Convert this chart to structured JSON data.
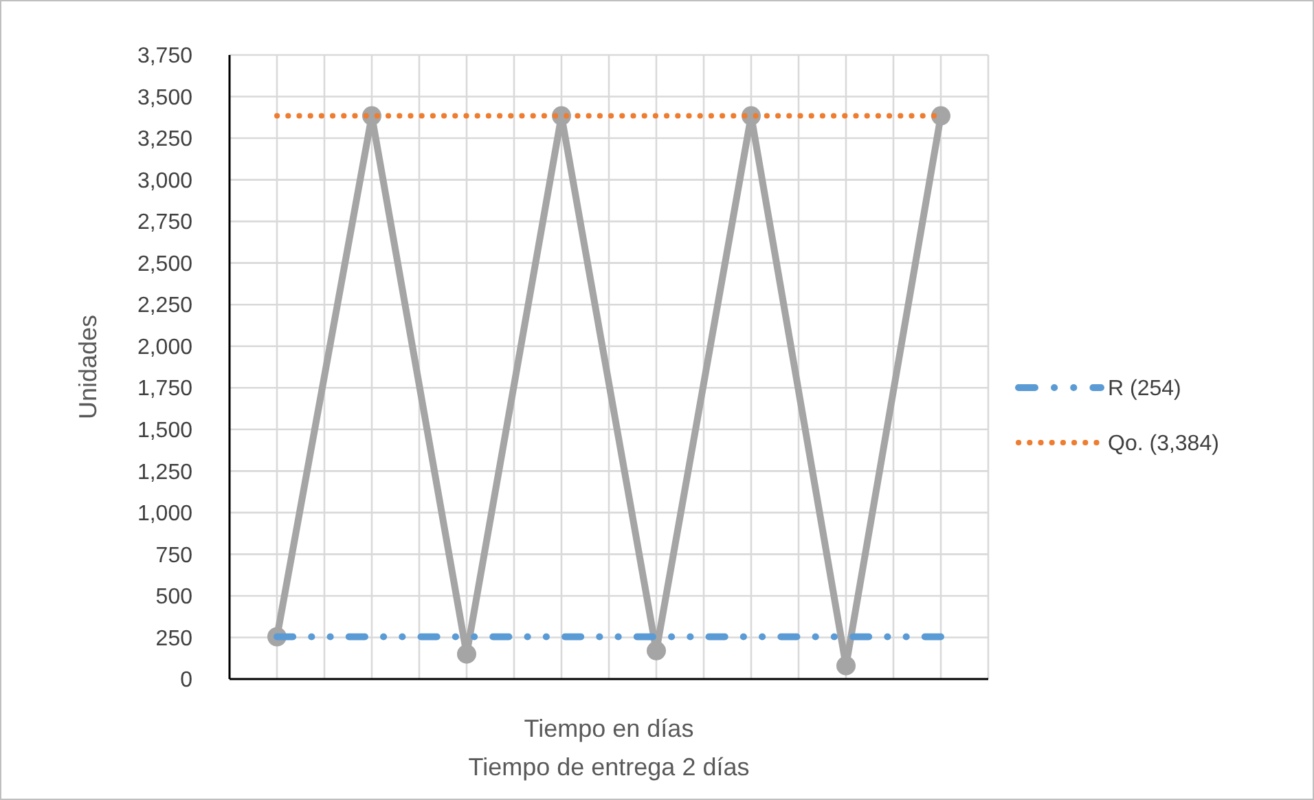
{
  "chart_data": {
    "type": "line",
    "ylabel": "Unidades",
    "xlabel": "Tiempo en días",
    "annotations": [
      "Tiempo de entrega 2 días"
    ],
    "categories": [
      null,
      null,
      null,
      null,
      null,
      null,
      null,
      null
    ],
    "ylim": [
      0,
      3750
    ],
    "yticks": [
      {
        "value": 0,
        "label": "0"
      },
      {
        "value": 250,
        "label": "250"
      },
      {
        "value": 500,
        "label": "500"
      },
      {
        "value": 750,
        "label": "750"
      },
      {
        "value": 1000,
        "label": "1,000"
      },
      {
        "value": 1250,
        "label": "1,250"
      },
      {
        "value": 1500,
        "label": "1,500"
      },
      {
        "value": 1750,
        "label": "1,750"
      },
      {
        "value": 2000,
        "label": "2,000"
      },
      {
        "value": 2250,
        "label": "2,250"
      },
      {
        "value": 2500,
        "label": "2,500"
      },
      {
        "value": 2750,
        "label": "2,750"
      },
      {
        "value": 3000,
        "label": "3,000"
      },
      {
        "value": 3250,
        "label": "3,250"
      },
      {
        "value": 3500,
        "label": "3,500"
      },
      {
        "value": 3750,
        "label": "3,750"
      }
    ],
    "grid": true,
    "legend": "right",
    "series": [
      {
        "color": "#a5a5a5",
        "values": [
          254,
          3384,
          150,
          3384,
          170,
          3384,
          80,
          3384
        ],
        "marker": "circle",
        "line_style": "solid"
      },
      {
        "name": "R (254)",
        "color": "#5b9bd5",
        "values": [
          254,
          254,
          254,
          254,
          254,
          254,
          254,
          254
        ],
        "marker": "none",
        "line_style": "dashed"
      },
      {
        "name": "Qo. (3,384)",
        "color": "#ed7d31",
        "values": [
          3384,
          3384,
          3384,
          3384,
          3384,
          3384,
          3384,
          3384
        ],
        "marker": "none",
        "line_style": "dotted"
      }
    ]
  }
}
